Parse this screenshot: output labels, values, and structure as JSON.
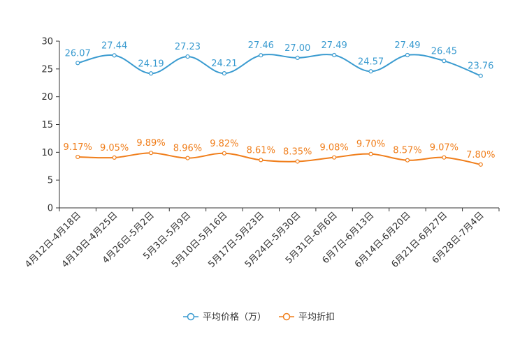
{
  "chart_data": {
    "type": "line",
    "title": "",
    "xlabel": "",
    "ylabel": "",
    "ylim": [
      0,
      30
    ],
    "yticks": [
      0,
      5,
      10,
      15,
      20,
      25,
      30
    ],
    "categories": [
      "4月12日-4月18日",
      "4月19日-4月25日",
      "4月26日-5月2日",
      "5月3日-5月9日",
      "5月10日-5月16日",
      "5月17日-5月23日",
      "5月24日-5月30日",
      "5月31日-6月6日",
      "6月7日-6月13日",
      "6月14日-6月20日",
      "6月21日-6月27日",
      "6月28日-7月4日"
    ],
    "series": [
      {
        "name": "平均价格（万）",
        "color": "#3a9bd0",
        "values": [
          26.07,
          27.44,
          24.19,
          27.23,
          24.21,
          27.46,
          27.0,
          27.49,
          24.57,
          27.49,
          26.45,
          23.76
        ],
        "labels": [
          "26.07",
          "27.44",
          "24.19",
          "27.23",
          "24.21",
          "27.46",
          "27.00",
          "27.49",
          "24.57",
          "27.49",
          "26.45",
          "23.76"
        ]
      },
      {
        "name": "平均折扣",
        "color": "#f07e1b",
        "values": [
          9.17,
          9.05,
          9.89,
          8.96,
          9.82,
          8.61,
          8.35,
          9.08,
          9.7,
          8.57,
          9.07,
          7.8
        ],
        "labels": [
          "9.17%",
          "9.05%",
          "9.89%",
          "8.96%",
          "9.82%",
          "8.61%",
          "8.35%",
          "9.08%",
          "9.70%",
          "8.57%",
          "9.07%",
          "7.80%"
        ]
      }
    ],
    "legend_position": "bottom-center",
    "grid": false
  }
}
